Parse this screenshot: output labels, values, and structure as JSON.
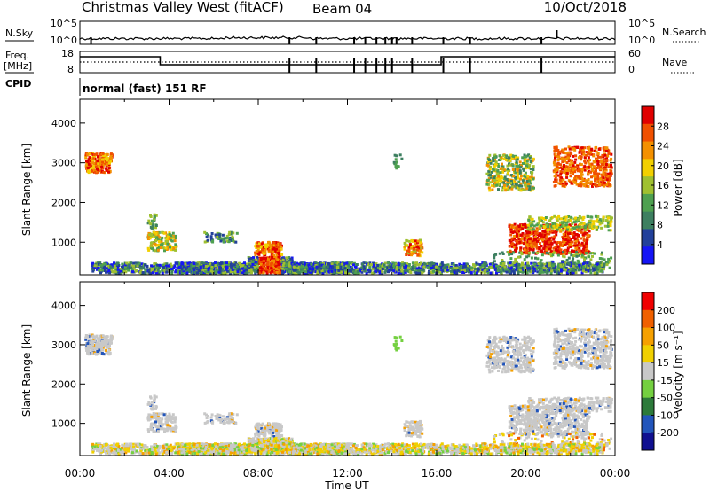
{
  "header": {
    "radar": "Christmas Valley West (fitACF)",
    "beam": "Beam 04",
    "date": "10/Oct/2018"
  },
  "top_panels": {
    "nsky_label": "N.Sky",
    "nsky_ticks": [
      "10^5",
      "10^0"
    ],
    "nsearch_label": "N.Search",
    "nsearch_ticks": [
      "10^5",
      "10^0"
    ],
    "freq_label_1": "Freq.",
    "freq_label_2": "[MHz]",
    "freq_ticks": [
      "18",
      "8"
    ],
    "nave_label": "Nave",
    "nave_ticks": [
      "60",
      "0"
    ],
    "cpid_label": "CPID",
    "cpid_text": "normal (fast) 151 RF"
  },
  "colors": {
    "power": [
      "#1515f5",
      "#22409a",
      "#3d7f60",
      "#4ea050",
      "#9fc030",
      "#f2d000",
      "#f39000",
      "#f05000",
      "#e00000"
    ],
    "velocity": [
      "#101090",
      "#2255bb",
      "#2c7a3a",
      "#74d040",
      "#c8c8c8",
      "#f0d000",
      "#f5a000",
      "#f06000",
      "#f00000"
    ]
  },
  "chart_data": [
    {
      "type": "heatmap",
      "name": "power",
      "ylabel": "Slant Range [km]",
      "xlabel": "",
      "ylim": [
        180,
        4600
      ],
      "xlim": [
        0,
        24
      ],
      "y_ticks": [
        "1000",
        "2000",
        "3000",
        "4000"
      ],
      "x_ticks": [
        "00:00",
        "04:00",
        "08:00",
        "12:00",
        "16:00",
        "20:00",
        "00:00"
      ],
      "colorbar_label": "Power [dB]",
      "colorbar_ticks": [
        "4",
        "8",
        "12",
        "16",
        "20",
        "24",
        "28"
      ],
      "colorbar_range": [
        0,
        30
      ],
      "grid": false
    },
    {
      "type": "heatmap",
      "name": "velocity",
      "ylabel": "Slant Range [km]",
      "xlabel": "Time UT",
      "ylim": [
        180,
        4600
      ],
      "xlim": [
        0,
        24
      ],
      "y_ticks": [
        "1000",
        "2000",
        "3000",
        "4000"
      ],
      "x_ticks": [
        "00:00",
        "04:00",
        "08:00",
        "12:00",
        "16:00",
        "20:00",
        "00:00"
      ],
      "colorbar_label": "Velocity [m s⁻¹]",
      "colorbar_ticks": [
        "200",
        "100",
        "50",
        "15",
        "-15",
        "-50",
        "-100",
        "-200"
      ],
      "grid": false
    }
  ]
}
